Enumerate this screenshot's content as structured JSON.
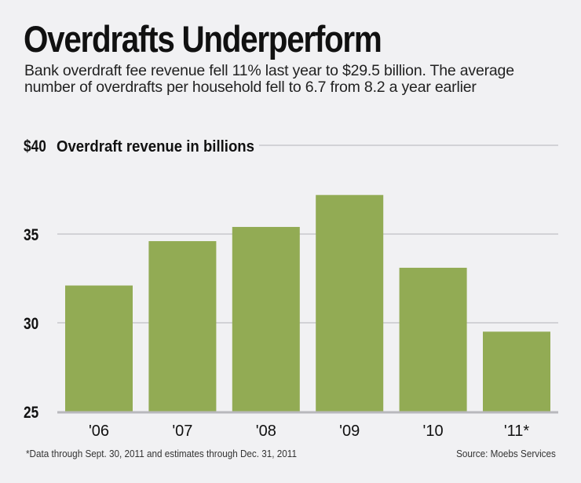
{
  "header": {
    "title": "Overdrafts Underperform",
    "subtitle": "Bank overdraft fee revenue fell 11% last year to $29.5 billion. The average number of overdrafts per household fell to 6.7 from 8.2 a year earlier"
  },
  "footer": {
    "footnote": "*Data through Sept. 30, 2011 and estimates through Dec. 31, 2011",
    "source": "Source: Moebs Services"
  },
  "colors": {
    "bar": "#92ab54",
    "grid": "#d2d2d6",
    "axis": "#b8b8bc",
    "background": "#f1f1f3"
  },
  "chart_data": {
    "type": "bar",
    "title": "Overdraft revenue in billions",
    "ylabel": "Overdraft revenue in billions",
    "xlabel": "",
    "categories": [
      "'06",
      "'07",
      "'08",
      "'09",
      "'10",
      "'11*"
    ],
    "values": [
      32.1,
      34.6,
      35.4,
      37.2,
      33.1,
      29.5
    ],
    "ylim": [
      25,
      40
    ],
    "yticks": [
      25,
      30,
      35,
      40
    ],
    "ytick_labels": [
      "25",
      "30",
      "35",
      "$40"
    ],
    "grid": true,
    "legend": "none"
  }
}
